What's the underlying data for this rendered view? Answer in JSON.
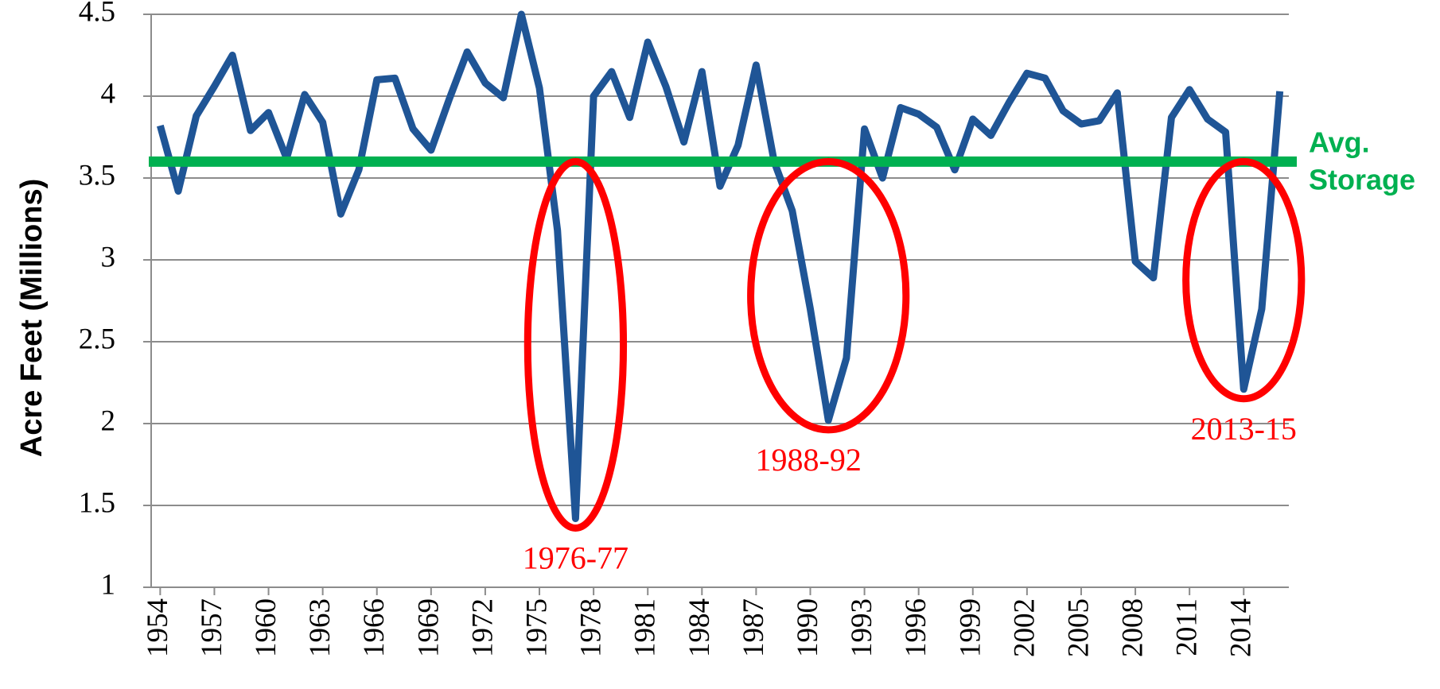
{
  "chart_data": {
    "type": "line",
    "y_label": "Acre Feet (Millions)",
    "x": [
      1954,
      1955,
      1956,
      1957,
      1958,
      1959,
      1960,
      1961,
      1962,
      1963,
      1964,
      1965,
      1966,
      1967,
      1968,
      1969,
      1970,
      1971,
      1972,
      1973,
      1974,
      1975,
      1976,
      1977,
      1978,
      1979,
      1980,
      1981,
      1982,
      1983,
      1984,
      1985,
      1986,
      1987,
      1988,
      1989,
      1990,
      1991,
      1992,
      1993,
      1994,
      1995,
      1996,
      1997,
      1998,
      1999,
      2000,
      2001,
      2002,
      2003,
      2004,
      2005,
      2006,
      2007,
      2008,
      2009,
      2010,
      2011,
      2012,
      2013,
      2014,
      2015,
      2016
    ],
    "series": [
      {
        "name": "Storage",
        "color": "#1f5596",
        "values": [
          3.82,
          3.42,
          3.88,
          4.06,
          4.25,
          3.79,
          3.9,
          3.62,
          4.01,
          3.84,
          3.28,
          3.55,
          4.1,
          4.11,
          3.8,
          3.67,
          3.98,
          4.27,
          4.08,
          3.99,
          4.5,
          4.05,
          3.18,
          1.42,
          4.0,
          4.15,
          3.87,
          4.33,
          4.06,
          3.72,
          4.15,
          3.45,
          3.7,
          4.19,
          3.6,
          3.3,
          2.7,
          2.02,
          2.4,
          3.8,
          3.5,
          3.93,
          3.89,
          3.81,
          3.55,
          3.86,
          3.76,
          3.96,
          4.14,
          4.11,
          3.91,
          3.83,
          3.85,
          4.02,
          2.99,
          2.89,
          3.87,
          4.04,
          3.86,
          3.78,
          2.21,
          2.7,
          4.03
        ]
      }
    ],
    "xlim": [
      1953.5,
      2016.5
    ],
    "xticks": [
      1954,
      1957,
      1960,
      1963,
      1966,
      1969,
      1972,
      1975,
      1978,
      1981,
      1984,
      1987,
      1990,
      1993,
      1996,
      1999,
      2002,
      2005,
      2008,
      2011,
      2014
    ],
    "ylim": [
      1,
      4.5
    ],
    "yticks": [
      1,
      1.5,
      2,
      2.5,
      3,
      3.5,
      4,
      4.5
    ],
    "grid": true,
    "reference_line": {
      "value": 3.6,
      "color": "#00b050",
      "label": [
        "Avg.",
        "Storage"
      ]
    },
    "periods": [
      {
        "label": "1976-77",
        "start": 1976,
        "end": 1977
      },
      {
        "label": "1988-92",
        "start": 1988,
        "end": 1992
      },
      {
        "label": "2013-15",
        "start": 2013,
        "end": 2015
      }
    ],
    "period_color": "#ff0000"
  }
}
